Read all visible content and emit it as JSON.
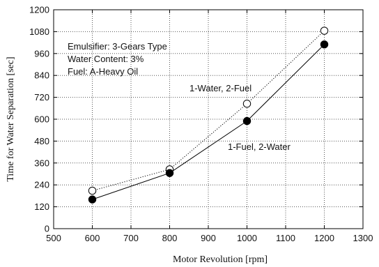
{
  "chart_data": {
    "type": "line",
    "xlabel": "Motor Revolution [rpm]",
    "ylabel": "Time for Water Separation [sec]",
    "xlim": [
      500,
      1300
    ],
    "ylim": [
      0,
      1200
    ],
    "x_ticks": [
      500,
      600,
      700,
      800,
      900,
      1000,
      1100,
      1200,
      1300
    ],
    "y_ticks": [
      0,
      120,
      240,
      360,
      480,
      600,
      720,
      840,
      960,
      1080,
      1200
    ],
    "x_tick_labels": [
      "500",
      "600",
      "700",
      "800",
      "900",
      "1000",
      "1100",
      "1200",
      "1300"
    ],
    "y_tick_labels": [
      "0",
      "120",
      "240",
      "360",
      "480",
      "600",
      "720",
      "840",
      "960",
      "1080",
      "1200"
    ],
    "grid": true,
    "series": [
      {
        "name": "1-Water, 2-Fuel",
        "marker": "open-circle",
        "line_style": "dotted",
        "x": [
          600,
          800,
          1000,
          1200
        ],
        "y": [
          208,
          325,
          685,
          1085
        ]
      },
      {
        "name": "1-Fuel, 2-Water",
        "marker": "filled-circle",
        "line_style": "solid",
        "x": [
          600,
          800,
          1000,
          1200
        ],
        "y": [
          160,
          305,
          590,
          1010
        ]
      }
    ],
    "annotations": [
      "Emulsifier: 3-Gears Type",
      "Water Content: 3%",
      "Fuel: A-Heavy Oil"
    ],
    "colors": {
      "line": "#000000",
      "grid": "#555555"
    }
  }
}
